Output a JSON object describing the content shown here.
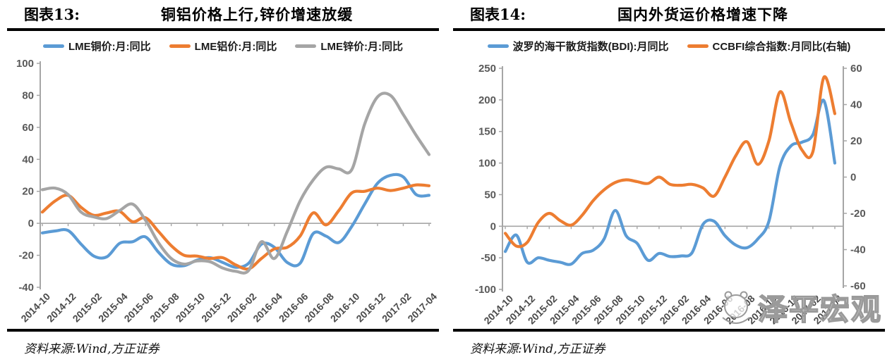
{
  "page_type": "research-report-figures",
  "colors": {
    "blue": "#5B9BD5",
    "orange": "#ED7D31",
    "gray": "#A5A5A5",
    "axis": "#A6A6A6",
    "tick_label": "#595959",
    "rule": "#000000",
    "watermark": "#9A9A9A"
  },
  "watermark": {
    "text": "泽平宏观",
    "logo": "mascot-outline"
  },
  "chart_data": [
    {
      "type": "line",
      "fig_label": "图表13:",
      "title": "铜铝价格上行,锌价增速放缓",
      "source": "资料来源:Wind,方正证券",
      "legend_position": "top",
      "grid": "zero-line-only",
      "x": [
        "2014-10",
        "2014-11",
        "2014-12",
        "2015-01",
        "2015-02",
        "2015-03",
        "2015-04",
        "2015-05",
        "2015-06",
        "2015-07",
        "2015-08",
        "2015-09",
        "2015-10",
        "2015-11",
        "2015-12",
        "2016-01",
        "2016-02",
        "2016-03",
        "2016-04",
        "2016-05",
        "2016-06",
        "2016-07",
        "2016-08",
        "2016-09",
        "2016-10",
        "2016-11",
        "2016-12",
        "2017-01",
        "2017-02",
        "2017-03",
        "2017-04"
      ],
      "x_tick_labels": [
        "2014-10",
        "2014-12",
        "2015-02",
        "2015-04",
        "2015-06",
        "2015-08",
        "2015-10",
        "2015-12",
        "2016-02",
        "2016-04",
        "2016-06",
        "2016-08",
        "2016-10",
        "2016-12",
        "2017-02",
        "2017-04"
      ],
      "y_left": {
        "min": -40,
        "max": 100,
        "step": 20,
        "ticks": [
          100,
          80,
          60,
          40,
          20,
          0,
          -20,
          -40
        ]
      },
      "series": [
        {
          "name": "LME铜价:月:同比",
          "color": "#5B9BD5",
          "axis": "left",
          "values": [
            -6,
            -4.8,
            -4.5,
            -13,
            -20.5,
            -21,
            -12.5,
            -11.5,
            -8.5,
            -18,
            -25.5,
            -26.5,
            -23,
            -21.5,
            -24.5,
            -27.5,
            -25,
            -13,
            -15,
            -24.5,
            -25,
            -6.5,
            -8,
            -12,
            -2,
            12,
            25,
            30,
            29,
            18,
            17.5
          ]
        },
        {
          "name": "LME铝价:月:同比",
          "color": "#ED7D31",
          "axis": "left",
          "values": [
            7,
            14,
            17.5,
            10,
            5,
            6.5,
            7.5,
            1,
            3.5,
            -5,
            -14,
            -20,
            -20.5,
            -22,
            -21.5,
            -26,
            -28.5,
            -22,
            -16,
            -15,
            -8,
            6.5,
            -1,
            8,
            19,
            20,
            22,
            20.5,
            22,
            24,
            23.5
          ]
        },
        {
          "name": "LME锌价:月:同比",
          "color": "#A5A5A5",
          "axis": "left",
          "values": [
            21,
            22,
            18,
            7,
            4,
            3,
            8,
            12,
            2,
            -12,
            -22,
            -25.5,
            -23.5,
            -24,
            -28,
            -30,
            -29.5,
            -11.5,
            -22,
            -5,
            14,
            27,
            35,
            34,
            33.5,
            62,
            79,
            80,
            68,
            55,
            43
          ]
        }
      ]
    },
    {
      "type": "line",
      "fig_label": "图表14:",
      "title": "国内外货运价格增速下降",
      "source": "资料来源:Wind,方正证券",
      "legend_position": "top",
      "grid": "zero-line-only",
      "x": [
        "2014-10",
        "2014-11",
        "2014-12",
        "2015-01",
        "2015-02",
        "2015-03",
        "2015-04",
        "2015-05",
        "2015-06",
        "2015-07",
        "2015-08",
        "2015-09",
        "2015-10",
        "2015-11",
        "2015-12",
        "2016-01",
        "2016-02",
        "2016-03",
        "2016-04",
        "2016-05",
        "2016-06",
        "2016-07",
        "2016-08",
        "2016-09",
        "2016-10",
        "2016-11",
        "2016-12",
        "2017-01",
        "2017-02",
        "2017-03",
        "2017-04"
      ],
      "x_tick_labels": [
        "2014-10",
        "2014-12",
        "2015-02",
        "2015-04",
        "2015-06",
        "2015-08",
        "2015-10",
        "2015-12",
        "2016-02",
        "2016-04",
        "2016-06",
        "2016-08",
        "2016-10",
        "2016-12",
        "2017-02",
        "2017-04"
      ],
      "y_left": {
        "min": -100,
        "max": 250,
        "step": 50,
        "ticks": [
          250,
          200,
          150,
          100,
          50,
          0,
          -50,
          -100
        ]
      },
      "y_right": {
        "min": -60,
        "max": 60,
        "step": 20,
        "ticks": [
          60,
          40,
          20,
          0,
          -20,
          -40,
          -60
        ]
      },
      "series": [
        {
          "name": "波罗的海干散货指数(BDI):月同比",
          "color": "#5B9BD5",
          "axis": "left",
          "values": [
            -40,
            -14,
            -57,
            -50,
            -54,
            -57,
            -60,
            -43,
            -38,
            -20,
            25,
            -15,
            -27,
            -54,
            -43,
            -48,
            -47,
            -42,
            3,
            8,
            -15,
            -30,
            -34,
            -20,
            8,
            95,
            127,
            133,
            145,
            199,
            100
          ]
        },
        {
          "name": "CCBFI综合指数:月同比(右轴)",
          "color": "#ED7D31",
          "axis": "right",
          "values": [
            -31,
            -38,
            -36,
            -25,
            -20,
            -24,
            -26.5,
            -21,
            -13,
            -7,
            -3,
            -1.5,
            -2.5,
            -3.5,
            0,
            -4,
            -4.5,
            -4,
            -6,
            -10.5,
            0,
            12,
            19.5,
            7,
            20,
            47,
            30,
            15,
            14,
            55,
            35
          ]
        }
      ]
    }
  ]
}
